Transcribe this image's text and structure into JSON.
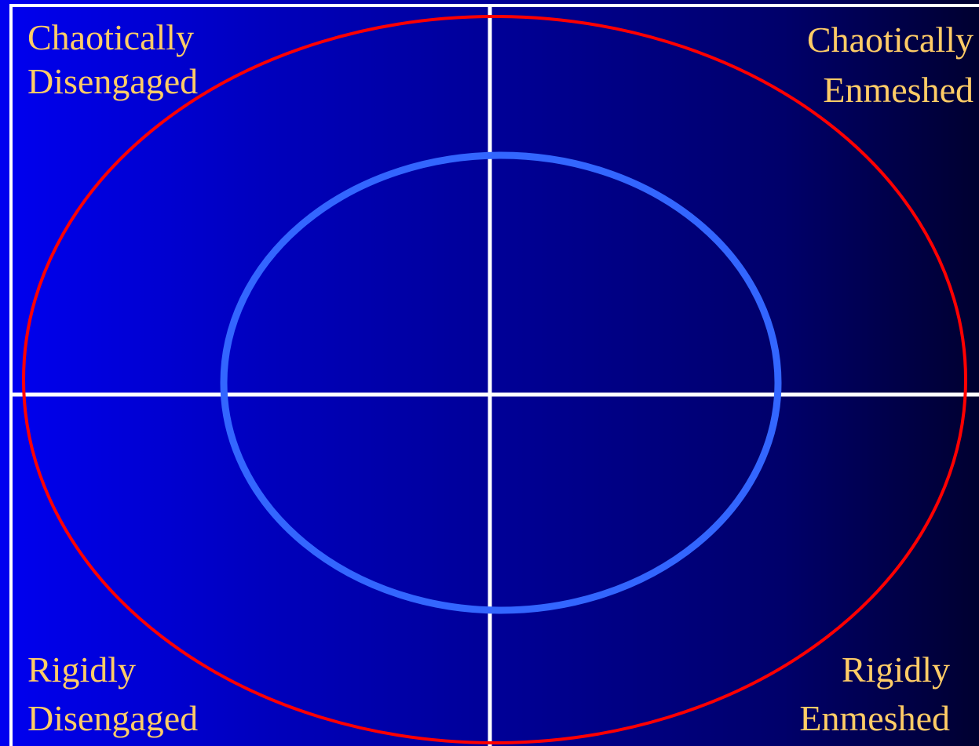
{
  "colors": {
    "label": "#ffcc66",
    "outer_ellipse": "#ff0000",
    "inner_ellipse": "#3366ff",
    "grid_lines": "#ffffff",
    "background_left": "#0000f0",
    "background_right": "#000030"
  },
  "quadrants": {
    "top_left": {
      "line1": "Chaotically",
      "line2": "Disengaged"
    },
    "top_right": {
      "line1": "Chaotically",
      "line2": "Enmeshed"
    },
    "bottom_left": {
      "line1": "Rigidly",
      "line2": "Disengaged"
    },
    "bottom_right": {
      "line1": "Rigidly",
      "line2": "Enmeshed"
    }
  }
}
